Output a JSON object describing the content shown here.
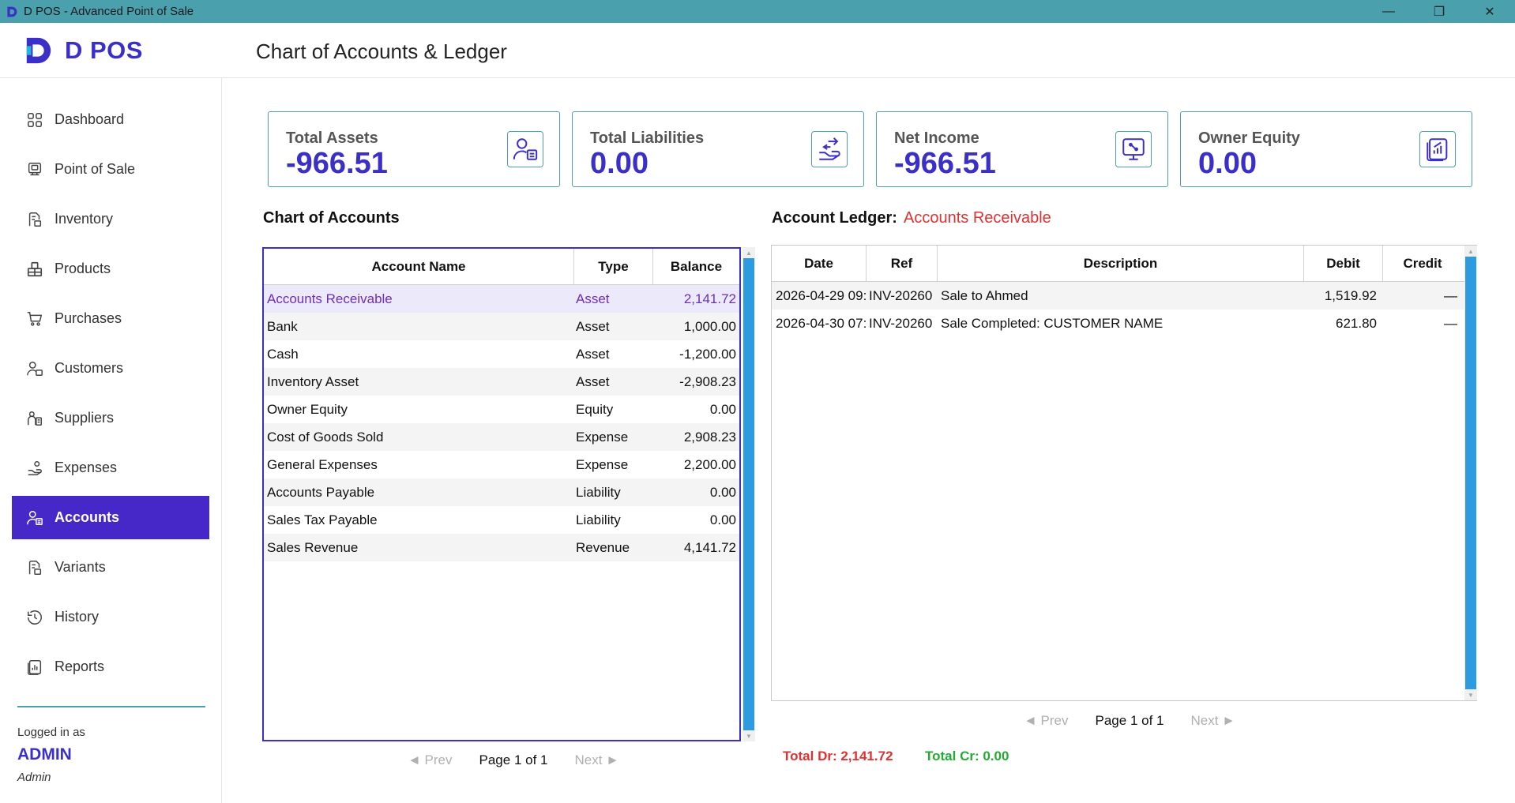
{
  "window": {
    "title": "D POS - Advanced Point of Sale",
    "controls": [
      "minimize-icon",
      "restore-icon",
      "close-icon"
    ]
  },
  "header": {
    "brand": "D POS",
    "page_title": "Chart of Accounts & Ledger"
  },
  "sidebar": {
    "items": [
      {
        "label": "Dashboard",
        "icon": "dashboard-grid-icon",
        "active": false
      },
      {
        "label": "Point of Sale",
        "icon": "pos-terminal-icon",
        "active": false
      },
      {
        "label": "Inventory",
        "icon": "inventory-icon",
        "active": false
      },
      {
        "label": "Products",
        "icon": "products-icon",
        "active": false
      },
      {
        "label": "Purchases",
        "icon": "cart-icon",
        "active": false
      },
      {
        "label": "Customers",
        "icon": "customers-icon",
        "active": false
      },
      {
        "label": "Suppliers",
        "icon": "suppliers-icon",
        "active": false
      },
      {
        "label": "Expenses",
        "icon": "expenses-icon",
        "active": false
      },
      {
        "label": "Accounts",
        "icon": "accounts-icon",
        "active": true
      },
      {
        "label": "Variants",
        "icon": "variants-icon",
        "active": false
      },
      {
        "label": "History",
        "icon": "history-icon",
        "active": false
      },
      {
        "label": "Reports",
        "icon": "reports-icon",
        "active": false
      }
    ],
    "logged_in_label": "Logged in as",
    "user": "ADMIN",
    "role": "Admin"
  },
  "cards": [
    {
      "title": "Total Assets",
      "value": "-966.51",
      "icon": "assets-icon"
    },
    {
      "title": "Total Liabilities",
      "value": "0.00",
      "icon": "liabilities-icon"
    },
    {
      "title": "Net Income",
      "value": "-966.51",
      "icon": "net-income-icon"
    },
    {
      "title": "Owner Equity",
      "value": "0.00",
      "icon": "equity-icon"
    }
  ],
  "accounts": {
    "heading": "Chart of Accounts",
    "columns": {
      "name": "Account Name",
      "type": "Type",
      "balance": "Balance"
    },
    "rows": [
      {
        "name": "Accounts Receivable",
        "type": "Asset",
        "balance": "2,141.72",
        "selected": true
      },
      {
        "name": "Bank",
        "type": "Asset",
        "balance": "1,000.00"
      },
      {
        "name": "Cash",
        "type": "Asset",
        "balance": "-1,200.00"
      },
      {
        "name": "Inventory Asset",
        "type": "Asset",
        "balance": "-2,908.23"
      },
      {
        "name": "Owner Equity",
        "type": "Equity",
        "balance": "0.00"
      },
      {
        "name": "Cost of Goods Sold",
        "type": "Expense",
        "balance": "2,908.23"
      },
      {
        "name": "General Expenses",
        "type": "Expense",
        "balance": "2,200.00"
      },
      {
        "name": "Accounts Payable",
        "type": "Liability",
        "balance": "0.00"
      },
      {
        "name": "Sales Tax Payable",
        "type": "Liability",
        "balance": "0.00"
      },
      {
        "name": "Sales Revenue",
        "type": "Revenue",
        "balance": "4,141.72"
      }
    ],
    "pager": {
      "prev": "◄ Prev",
      "label": "Page 1 of 1",
      "next": "Next ►"
    }
  },
  "ledger": {
    "heading": "Account Ledger:",
    "account": "Accounts Receivable",
    "columns": {
      "date": "Date",
      "ref": "Ref",
      "desc": "Description",
      "debit": "Debit",
      "credit": "Credit"
    },
    "rows": [
      {
        "date": "2026-04-29 09:",
        "ref": "INV-20260",
        "desc": "Sale to Ahmed",
        "debit": "1,519.92",
        "credit": "—"
      },
      {
        "date": "2026-04-30 07:",
        "ref": "INV-20260",
        "desc": "Sale Completed: CUSTOMER NAME",
        "debit": "621.80",
        "credit": "—"
      }
    ],
    "pager": {
      "prev": "◄ Prev",
      "label": "Page 1 of 1",
      "next": "Next ►"
    },
    "total_dr": "Total Dr: 2,141.72",
    "total_cr": "Total Cr: 0.00"
  },
  "colors": {
    "accent": "#3a2fc8",
    "active_nav": "#4628c8",
    "titlebar": "#4aa0ad",
    "card_border": "#4aa0ad",
    "scrollbar": "#2d9be0",
    "total_dr": "#e03030",
    "total_cr": "#22aa33",
    "ledger_account": "#e03030"
  }
}
